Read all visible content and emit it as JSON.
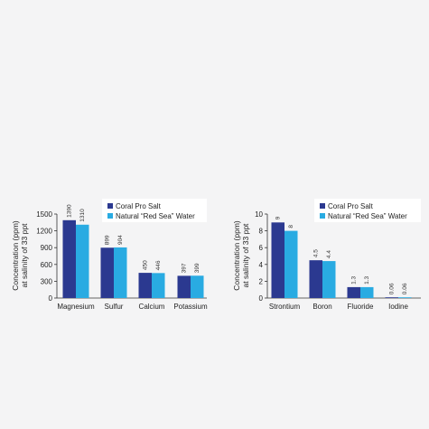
{
  "chart_data": [
    {
      "type": "bar",
      "categories": [
        "Magnesium",
        "Sulfur",
        "Calcium",
        "Potassium"
      ],
      "series": [
        {
          "name": "Coral Pro Salt",
          "values": [
            1390,
            899,
            450,
            397
          ],
          "labels": [
            "1390",
            "899",
            "450",
            "397"
          ]
        },
        {
          "name": "Natural “Red Sea” Water",
          "values": [
            1310,
            904,
            446,
            399
          ],
          "labels": [
            "1310",
            "904",
            "446",
            "399"
          ]
        }
      ],
      "ylabel_lines": [
        "Concentration (ppm)",
        "at salinity of 33 ppt"
      ],
      "ylim": [
        0,
        1500
      ],
      "yticks": [
        0,
        300,
        600,
        900,
        1200,
        1500
      ],
      "ytick_labels": [
        "0",
        "300",
        "600",
        "900",
        "1200",
        "1500"
      ],
      "grid": false,
      "legend": "top-right"
    },
    {
      "type": "bar",
      "categories": [
        "Strontium",
        "Boron",
        "Fluoride",
        "Iodine"
      ],
      "series": [
        {
          "name": "Coral Pro Salt",
          "values": [
            9,
            4.5,
            1.3,
            0.06
          ],
          "labels": [
            "9",
            "4.5",
            "1.3",
            "0.06"
          ]
        },
        {
          "name": "Natural “Red Sea” Water",
          "values": [
            8,
            4.4,
            1.3,
            0.06
          ],
          "labels": [
            "8",
            "4.4",
            "1.3",
            "0.06"
          ]
        }
      ],
      "ylabel_lines": [
        "Concentration (ppm)",
        "at salinity of 33 ppt"
      ],
      "ylim": [
        0,
        10
      ],
      "yticks": [
        0,
        2,
        4,
        6,
        8,
        10
      ],
      "ytick_labels": [
        "0",
        "2",
        "4",
        "6",
        "8",
        "10"
      ],
      "grid": false,
      "legend": "top-right"
    }
  ],
  "colors": {
    "coral_pro_salt": "#2b3990",
    "natural_red_sea_water": "#29abe2",
    "background": "#f4f4f5",
    "legend_background": "#ffffff"
  }
}
